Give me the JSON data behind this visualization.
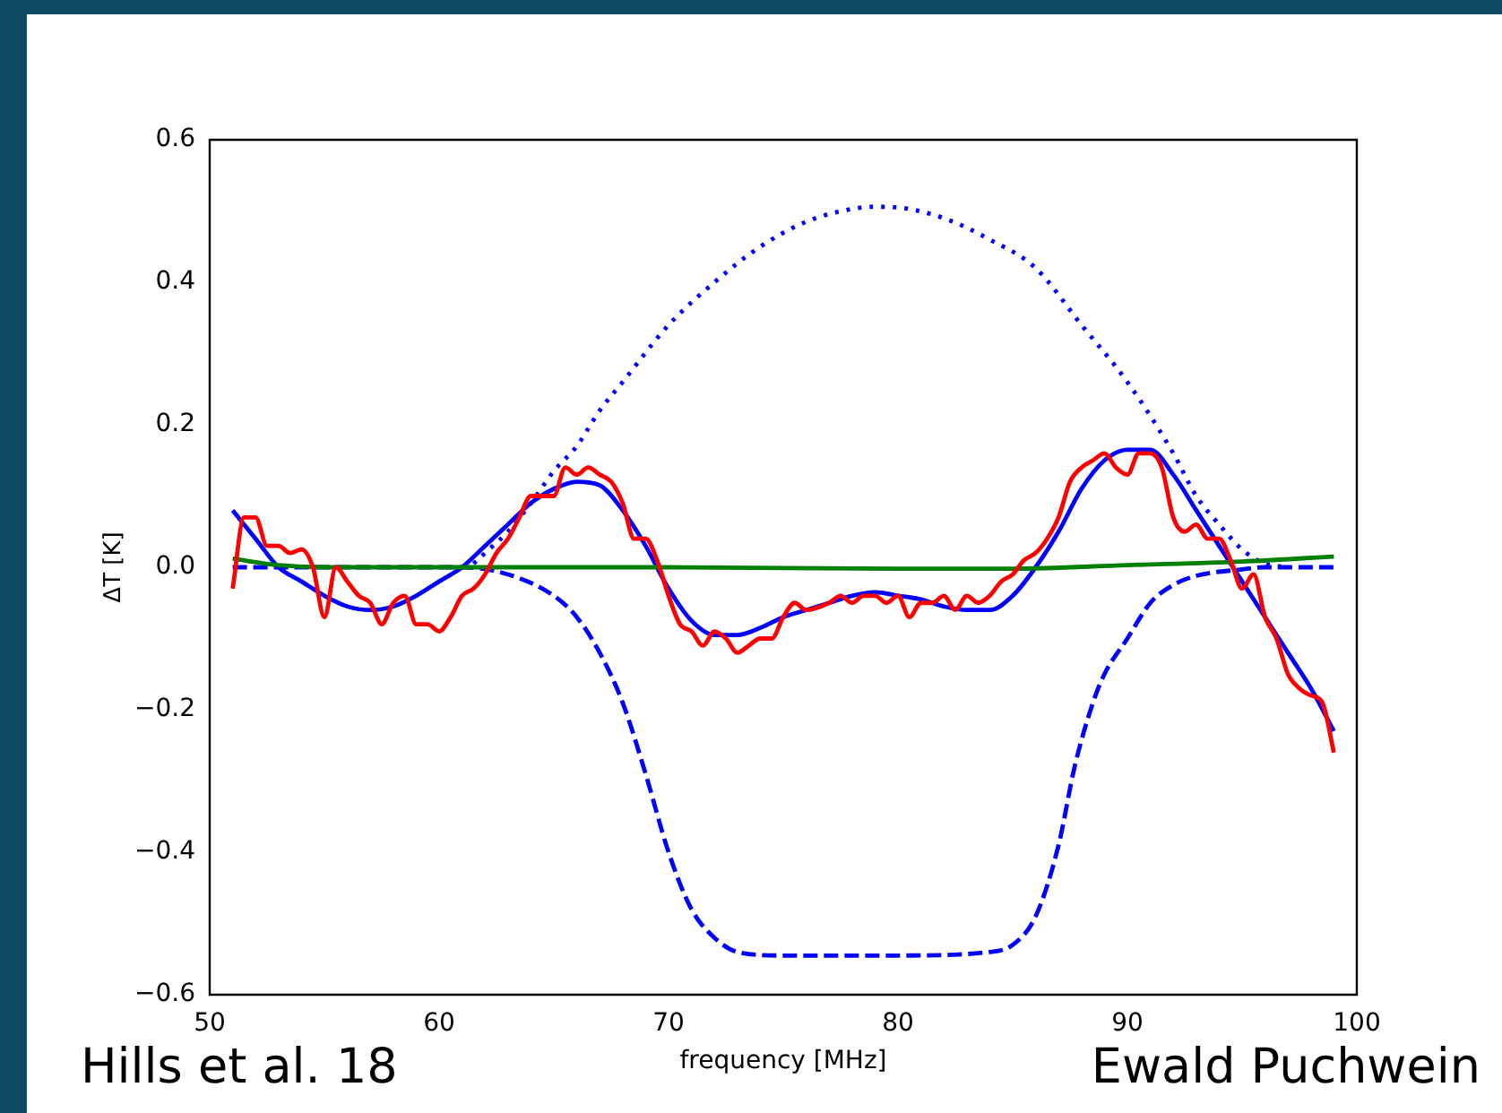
{
  "chart_data": {
    "type": "line",
    "xlabel": "frequency [MHz]",
    "ylabel": "ΔT [K]",
    "xlim": [
      50,
      100
    ],
    "xticks": [
      50,
      60,
      70,
      80,
      90,
      100
    ],
    "ylim": [
      -0.6,
      0.6
    ],
    "yticks": [
      {
        "value": -0.6,
        "label": "−0.6"
      },
      {
        "value": -0.4,
        "label": "−0.4"
      },
      {
        "value": -0.2,
        "label": "−0.2"
      },
      {
        "value": 0,
        "label": "0.0"
      },
      0.2,
      0.4,
      0.6
    ],
    "grid": false,
    "legend": false,
    "marker": "none",
    "annotations": [
      "Hills et al. 18",
      "Ewald Puchwein"
    ],
    "series": [
      {
        "color": "#ff0000",
        "line_style": "solid",
        "x": [
          51,
          51.5,
          52,
          52.5,
          53,
          53.5,
          54,
          54.5,
          55,
          55.5,
          56,
          56.5,
          57,
          57.5,
          58,
          58.5,
          59,
          59.5,
          60,
          60.5,
          61,
          61.5,
          62,
          62.5,
          63,
          63.5,
          64,
          64.5,
          65,
          65.5,
          66,
          66.5,
          67,
          67.5,
          68,
          68.5,
          69,
          69.5,
          70,
          70.5,
          71,
          71.5,
          72,
          72.5,
          73,
          73.5,
          74,
          74.5,
          75,
          75.5,
          76,
          77,
          77.5,
          78,
          78.5,
          79,
          79.5,
          80,
          80.5,
          81,
          81.5,
          82,
          82.5,
          83,
          83.5,
          84,
          84.5,
          85,
          85.5,
          86,
          86.5,
          87,
          87.5,
          88,
          88.5,
          89,
          89.5,
          90,
          90.5,
          91,
          91.5,
          92,
          92.5,
          93,
          93.5,
          94,
          94.5,
          95,
          95.5,
          96,
          96.5,
          97,
          97.5,
          98,
          98.5,
          99
        ],
        "values": [
          -0.03,
          0.07,
          0.07,
          0.03,
          0.03,
          0.02,
          0.025,
          0.0,
          -0.07,
          0.0,
          -0.02,
          -0.04,
          -0.05,
          -0.08,
          -0.05,
          -0.04,
          -0.08,
          -0.08,
          -0.09,
          -0.07,
          -0.04,
          -0.03,
          -0.01,
          0.02,
          0.04,
          0.07,
          0.1,
          0.1,
          0.1,
          0.14,
          0.13,
          0.14,
          0.13,
          0.12,
          0.09,
          0.04,
          0.04,
          0.01,
          -0.04,
          -0.08,
          -0.09,
          -0.11,
          -0.09,
          -0.1,
          -0.12,
          -0.11,
          -0.1,
          -0.1,
          -0.07,
          -0.05,
          -0.06,
          -0.05,
          -0.04,
          -0.05,
          -0.04,
          -0.04,
          -0.05,
          -0.04,
          -0.07,
          -0.05,
          -0.05,
          -0.04,
          -0.06,
          -0.04,
          -0.05,
          -0.04,
          -0.02,
          -0.01,
          0.01,
          0.02,
          0.04,
          0.07,
          0.12,
          0.14,
          0.15,
          0.16,
          0.14,
          0.13,
          0.16,
          0.16,
          0.14,
          0.07,
          0.05,
          0.06,
          0.04,
          0.04,
          0.01,
          -0.03,
          -0.01,
          -0.07,
          -0.1,
          -0.15,
          -0.17,
          -0.18,
          -0.19,
          -0.26
        ]
      },
      {
        "color": "#008000",
        "line_style": "solid",
        "x": [
          51,
          53,
          55,
          60,
          70,
          80,
          85,
          90,
          95,
          99
        ],
        "values": [
          0.012,
          0.003,
          0.0,
          0.0,
          0.0,
          -0.002,
          -0.002,
          0.003,
          0.008,
          0.015
        ]
      },
      {
        "color": "#0000ff",
        "line_style": "dashed",
        "x": [
          51,
          61,
          63,
          65,
          66,
          67,
          68,
          69,
          70,
          71,
          72,
          73,
          75,
          80,
          84,
          85,
          86,
          87,
          87.7,
          88.5,
          89,
          90,
          91,
          92,
          93,
          95,
          96,
          99
        ],
        "values": [
          0,
          0,
          -0.01,
          -0.04,
          -0.07,
          -0.12,
          -0.19,
          -0.29,
          -0.4,
          -0.48,
          -0.52,
          -0.54,
          -0.545,
          -0.545,
          -0.54,
          -0.53,
          -0.49,
          -0.39,
          -0.28,
          -0.19,
          -0.15,
          -0.1,
          -0.05,
          -0.025,
          -0.012,
          -0.003,
          0,
          0
        ]
      },
      {
        "color": "#0000ff",
        "line_style": "dotted",
        "x": [
          61.5,
          62,
          63,
          64,
          65,
          66,
          67,
          68,
          70,
          72,
          74,
          76,
          78,
          79,
          80,
          82,
          84,
          86,
          88,
          90,
          92,
          93,
          94,
          95,
          96,
          97
        ],
        "values": [
          0.005,
          0.02,
          0.05,
          0.09,
          0.135,
          0.17,
          0.22,
          0.26,
          0.34,
          0.4,
          0.45,
          0.485,
          0.503,
          0.506,
          0.505,
          0.49,
          0.46,
          0.42,
          0.34,
          0.26,
          0.16,
          0.1,
          0.06,
          0.025,
          0.005,
          0
        ]
      },
      {
        "color": "#0000ff",
        "line_style": "solid",
        "x": [
          51,
          52,
          53,
          54,
          55,
          56,
          57,
          58,
          59,
          60,
          61,
          62,
          63,
          64,
          65,
          66,
          67,
          68,
          69,
          70,
          71,
          72,
          73,
          74,
          75,
          76,
          77,
          78,
          79,
          80,
          81,
          82,
          83,
          84,
          85,
          86,
          87,
          88,
          89,
          90,
          91,
          92,
          93,
          94,
          95,
          96,
          97,
          98,
          99
        ],
        "values": [
          0.08,
          0.04,
          0.0,
          -0.02,
          -0.04,
          -0.055,
          -0.06,
          -0.055,
          -0.04,
          -0.02,
          0.0,
          0.03,
          0.06,
          0.09,
          0.11,
          0.12,
          0.115,
          0.08,
          0.03,
          -0.03,
          -0.075,
          -0.095,
          -0.095,
          -0.085,
          -0.07,
          -0.06,
          -0.05,
          -0.04,
          -0.035,
          -0.04,
          -0.045,
          -0.055,
          -0.06,
          -0.06,
          -0.04,
          0.0,
          0.05,
          0.11,
          0.15,
          0.165,
          0.165,
          0.13,
          0.08,
          0.03,
          -0.02,
          -0.07,
          -0.12,
          -0.17,
          -0.23
        ]
      }
    ]
  }
}
